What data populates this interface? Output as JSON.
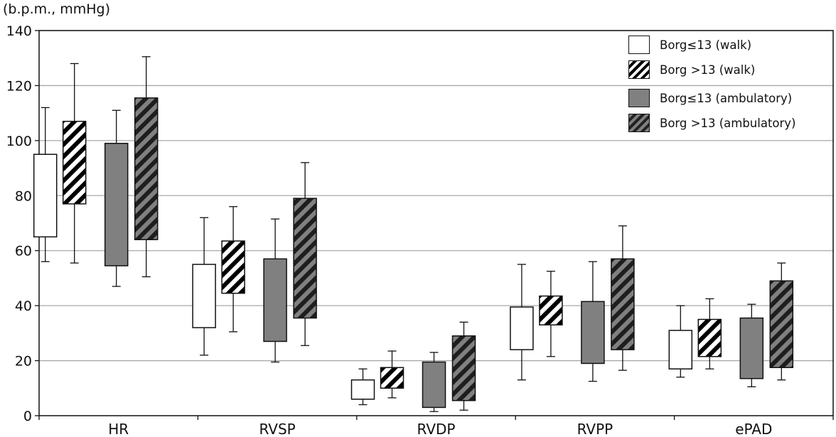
{
  "chart_data": {
    "type": "boxplot",
    "ylabel": "(b.p.m., mmHg)",
    "ylim": [
      0,
      140
    ],
    "yticks": [
      0,
      20,
      40,
      60,
      80,
      100,
      120,
      140
    ],
    "grid": true,
    "legend_position": "top-right",
    "categories": [
      "HR",
      "RVSP",
      "RVDP",
      "RVPP",
      "ePAD"
    ],
    "series": [
      {
        "name": "Borg≤13 (walk)",
        "fill": "white",
        "color": "#ffffff",
        "boxes": [
          {
            "whisker_low": 56,
            "q1": 65,
            "q3": 95,
            "whisker_high": 112
          },
          {
            "whisker_low": 22,
            "q1": 32,
            "q3": 55,
            "whisker_high": 72
          },
          {
            "whisker_low": 4,
            "q1": 6,
            "q3": 13,
            "whisker_high": 17
          },
          {
            "whisker_low": 13,
            "q1": 24,
            "q3": 39.5,
            "whisker_high": 55
          },
          {
            "whisker_low": 14,
            "q1": 17,
            "q3": 31,
            "whisker_high": 40
          }
        ]
      },
      {
        "name": "Borg >13 (walk)",
        "fill": "hatched-white",
        "color": "#ffffff",
        "boxes": [
          {
            "whisker_low": 55.5,
            "q1": 77,
            "q3": 107,
            "whisker_high": 128
          },
          {
            "whisker_low": 30.5,
            "q1": 44.5,
            "q3": 63.5,
            "whisker_high": 76
          },
          {
            "whisker_low": 6.5,
            "q1": 10,
            "q3": 17.5,
            "whisker_high": 23.5
          },
          {
            "whisker_low": 21.5,
            "q1": 33,
            "q3": 43.5,
            "whisker_high": 52.5
          },
          {
            "whisker_low": 17,
            "q1": 21.5,
            "q3": 35,
            "whisker_high": 42.5
          }
        ]
      },
      {
        "name": "Borg≤13 (ambulatory)",
        "fill": "gray",
        "color": "#808080",
        "boxes": [
          {
            "whisker_low": 47,
            "q1": 54.5,
            "q3": 99,
            "whisker_high": 111
          },
          {
            "whisker_low": 19.5,
            "q1": 27,
            "q3": 57,
            "whisker_high": 71.5
          },
          {
            "whisker_low": 1.5,
            "q1": 3,
            "q3": 19.5,
            "whisker_high": 23
          },
          {
            "whisker_low": 12.5,
            "q1": 19,
            "q3": 41.5,
            "whisker_high": 56
          },
          {
            "whisker_low": 10.5,
            "q1": 13.5,
            "q3": 35.5,
            "whisker_high": 40.5
          }
        ]
      },
      {
        "name": "Borg >13 (ambulatory)",
        "fill": "hatched-gray",
        "color": "#808080",
        "boxes": [
          {
            "whisker_low": 50.5,
            "q1": 64,
            "q3": 115.5,
            "whisker_high": 130.5
          },
          {
            "whisker_low": 25.5,
            "q1": 35.5,
            "q3": 79,
            "whisker_high": 92
          },
          {
            "whisker_low": 2,
            "q1": 5.5,
            "q3": 29,
            "whisker_high": 34
          },
          {
            "whisker_low": 16.5,
            "q1": 24,
            "q3": 57,
            "whisker_high": 69
          },
          {
            "whisker_low": 13,
            "q1": 17.5,
            "q3": 49,
            "whisker_high": 55.5
          }
        ]
      }
    ]
  }
}
